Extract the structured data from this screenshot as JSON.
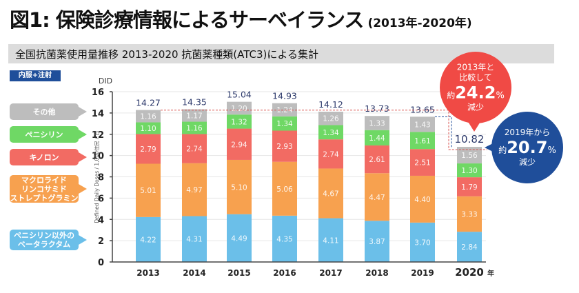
{
  "header": {
    "title": "図1: 保険診療情報によるサーベイランス",
    "title_range": "(2013年-2020年)",
    "subtitle": "全国抗菌薬使用量推移 2013-2020 抗菌薬種類(ATC3)による集計",
    "route_badge": "内服+注射"
  },
  "legend": [
    {
      "label": "その他",
      "color": "#bdbdbd"
    },
    {
      "label": "ペニシリン",
      "color": "#6fd865"
    },
    {
      "label": "キノロン",
      "color": "#f26b63"
    },
    {
      "label": "マクロライド\nリンコサミド\nストレプトグラミン",
      "color": "#f7a14f"
    },
    {
      "label": "ペニシリン以外の\nベータラクタム",
      "color": "#6bbfe9"
    }
  ],
  "callouts": {
    "vs2013": {
      "line1": "2013年と",
      "line2": "比較して",
      "prefix": "約",
      "value": "24.2",
      "unit": "%",
      "suffix": "減少",
      "color": "#f04a45"
    },
    "vs2019": {
      "line1": "2019年から",
      "prefix": "約",
      "value": "20.7",
      "unit": "%",
      "suffix": "減少",
      "color": "#1f4e9a"
    }
  },
  "chart_data": {
    "type": "bar",
    "stacked": true,
    "title": "全国抗菌薬使用量推移 2013-2020 抗菌薬種類(ATC3)による集計",
    "xlabel": "",
    "x_suffix": "年",
    "ylabel": "Defined Daily Doses / 1,000住民 / 日",
    "yunit": "DID",
    "ylim": [
      0,
      16
    ],
    "yticks": [
      0,
      2,
      4,
      6,
      8,
      10,
      12,
      14,
      16
    ],
    "grid": true,
    "categories": [
      "2013",
      "2014",
      "2015",
      "2016",
      "2017",
      "2018",
      "2019",
      "2020"
    ],
    "totals": [
      "14.27",
      "14.35",
      "15.04",
      "14.93",
      "14.12",
      "13.73",
      "13.65",
      "10.82"
    ],
    "series": [
      {
        "name": "ペニシリン以外のベータラクタム",
        "color": "#6bbfe9",
        "values": [
          4.22,
          4.31,
          4.49,
          4.35,
          4.11,
          3.87,
          3.7,
          2.84
        ]
      },
      {
        "name": "マクロライド リンコサミド ストレプトグラミン",
        "color": "#f7a14f",
        "values": [
          5.01,
          4.97,
          5.1,
          5.06,
          4.67,
          4.47,
          4.4,
          3.33
        ]
      },
      {
        "name": "キノロン",
        "color": "#f26b63",
        "values": [
          2.79,
          2.74,
          2.94,
          2.93,
          2.74,
          2.61,
          2.51,
          1.79
        ]
      },
      {
        "name": "ペニシリン",
        "color": "#6fd865",
        "values": [
          1.1,
          1.16,
          1.32,
          1.34,
          1.34,
          1.44,
          1.61,
          1.3
        ]
      },
      {
        "name": "その他",
        "color": "#bdbdbd",
        "values": [
          1.16,
          1.17,
          1.2,
          1.24,
          1.26,
          1.33,
          1.43,
          1.56
        ]
      }
    ],
    "reference_lines": [
      {
        "label": "2013 total",
        "value": 14.27,
        "color": "#d9534f",
        "style": "dashed"
      },
      {
        "label": "2019 total",
        "value": 13.65,
        "color": "#1f4e9a",
        "style": "dashed"
      }
    ]
  }
}
